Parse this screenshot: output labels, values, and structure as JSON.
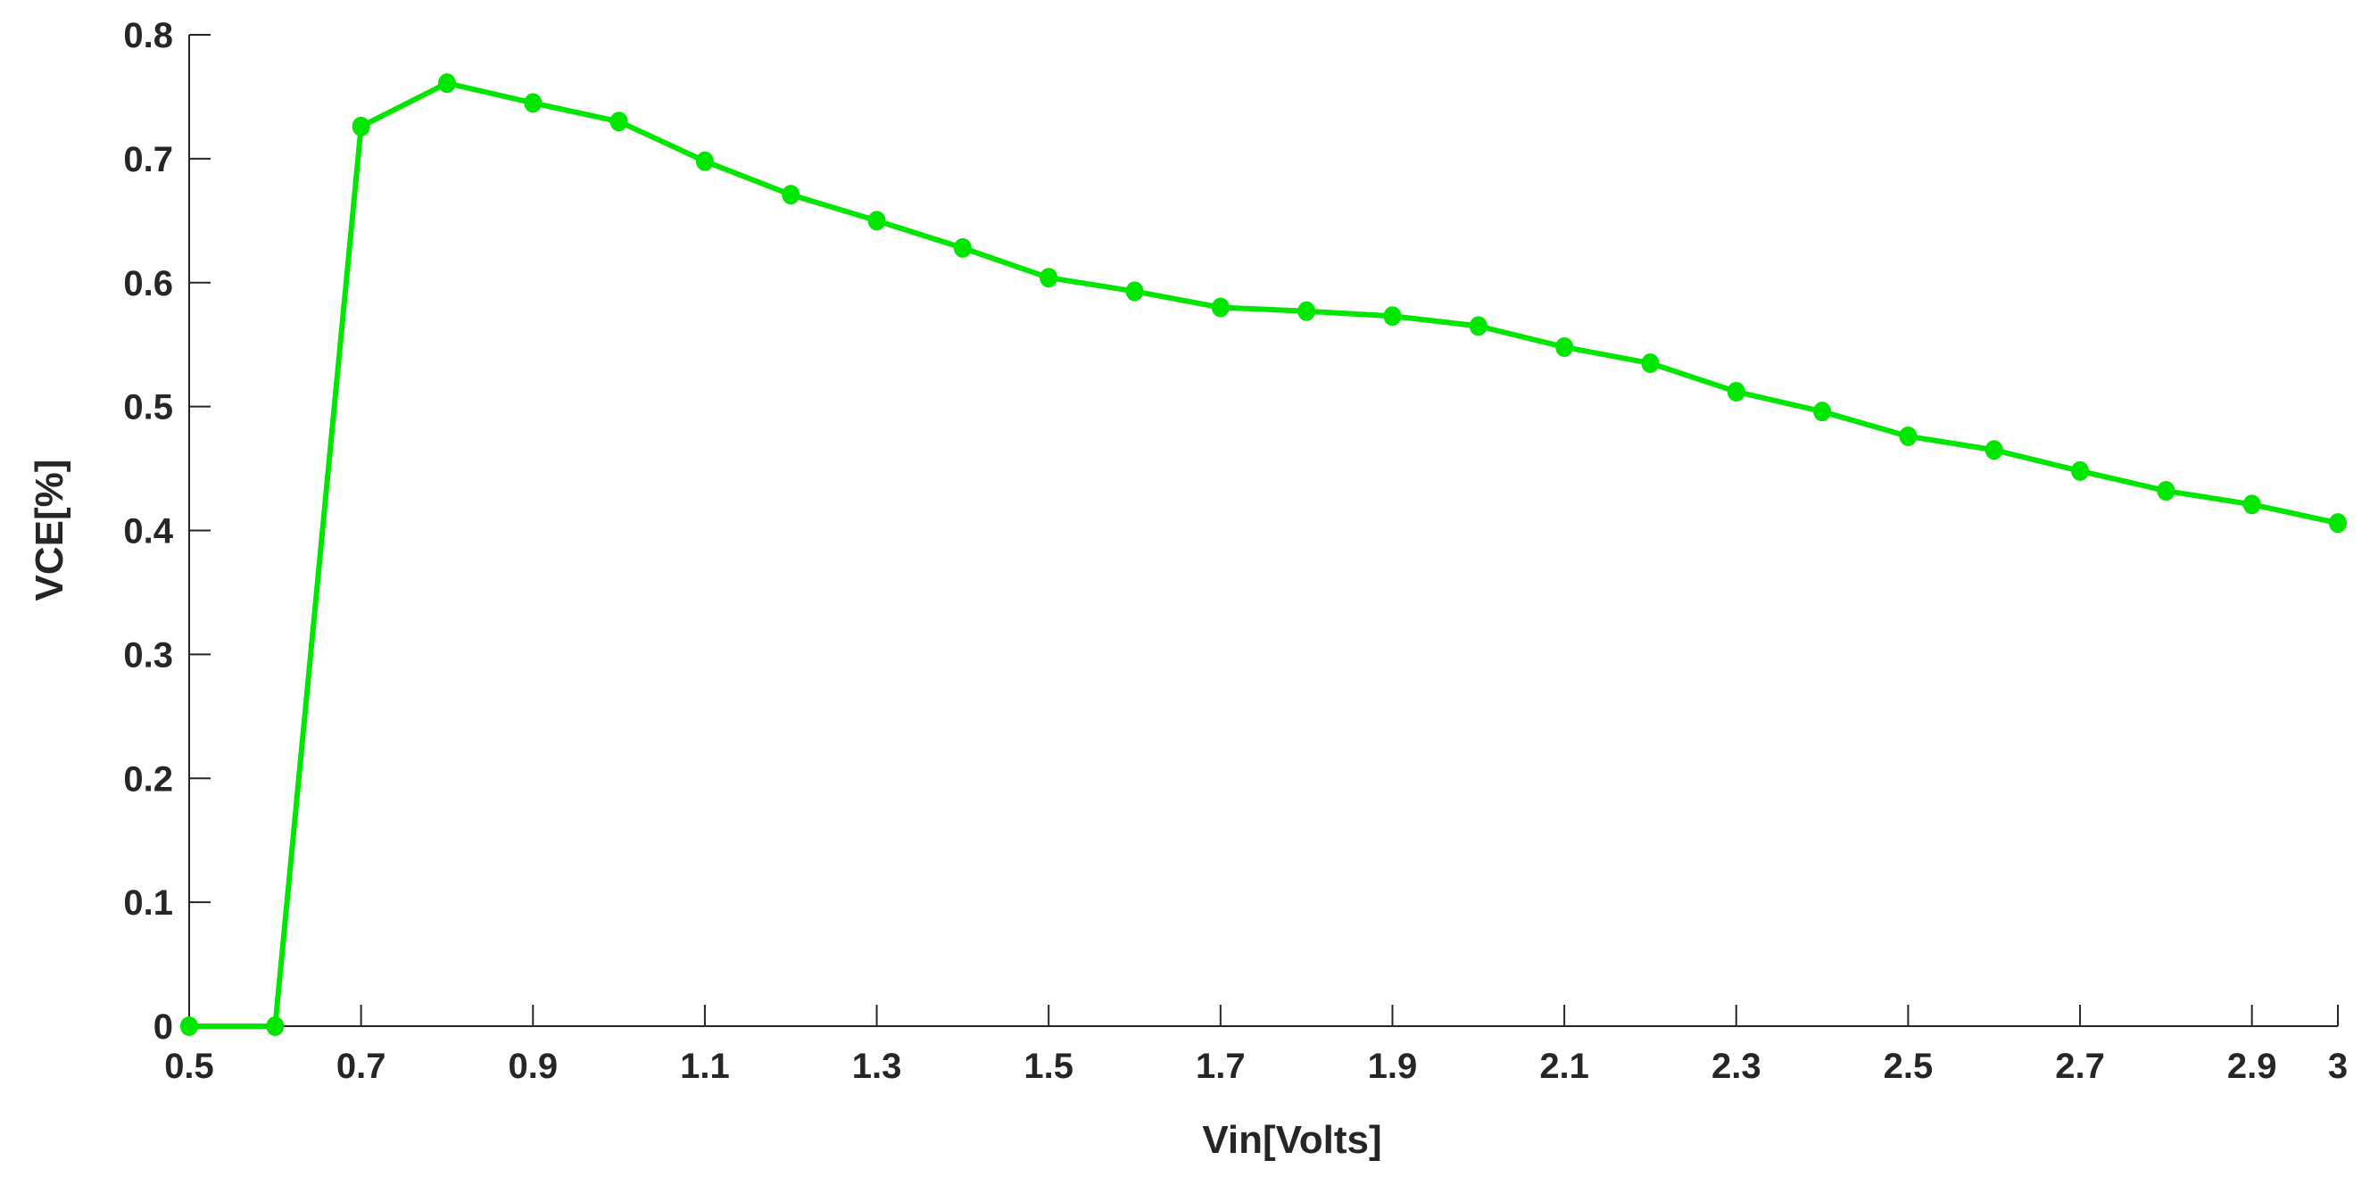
{
  "chart_data": {
    "type": "line",
    "title": "",
    "xlabel": "Vin[Volts]",
    "ylabel": "VCE[%]",
    "xlim": [
      0.5,
      3.0
    ],
    "ylim": [
      0,
      0.8
    ],
    "grid": false,
    "legend": null,
    "x_ticks": [
      "0.5",
      "0.7",
      "0.9",
      "1.1",
      "1.3",
      "1.5",
      "1.7",
      "1.9",
      "2.1",
      "2.3",
      "2.5",
      "2.7",
      "2.9",
      "3"
    ],
    "y_ticks": [
      "0",
      "0.1",
      "0.2",
      "0.3",
      "0.4",
      "0.5",
      "0.6",
      "0.7",
      "0.8"
    ],
    "series": [
      {
        "name": "VCE",
        "color": "#00e600",
        "marker": "circle",
        "x": [
          0.5,
          0.6,
          0.7,
          0.8,
          0.9,
          1.0,
          1.1,
          1.2,
          1.3,
          1.4,
          1.5,
          1.6,
          1.7,
          1.8,
          1.9,
          2.0,
          2.1,
          2.2,
          2.3,
          2.4,
          2.5,
          2.6,
          2.7,
          2.8,
          2.9,
          3.0
        ],
        "values": [
          0,
          0,
          0.726,
          0.761,
          0.745,
          0.73,
          0.698,
          0.671,
          0.65,
          0.628,
          0.604,
          0.593,
          0.58,
          0.577,
          0.573,
          0.565,
          0.548,
          0.535,
          0.512,
          0.496,
          0.476,
          0.465,
          0.448,
          0.432,
          0.421,
          0.406
        ]
      }
    ]
  }
}
